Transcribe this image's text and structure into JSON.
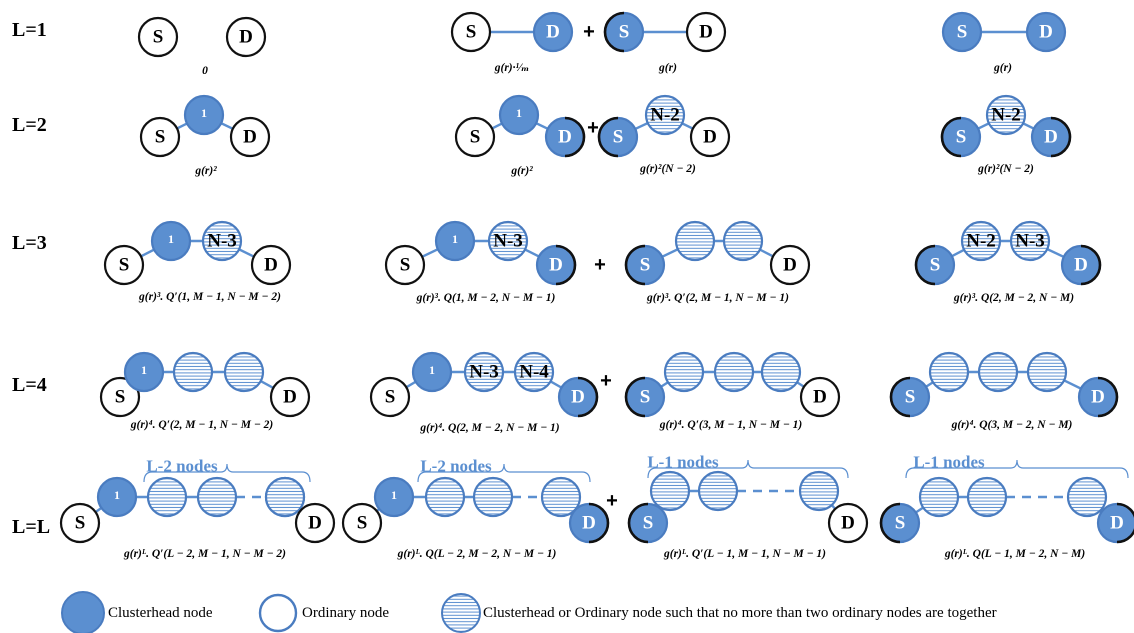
{
  "rows": [
    {
      "label": "L=1",
      "formulas": [
        "0",
        "g(r)·¹⁄ₘ",
        "g(r)",
        "g(r)"
      ]
    },
    {
      "label": "L=2",
      "formulas": [
        "g(r)²",
        "g(r)²",
        "g(r)²(N − 2)",
        "g(r)²(N − 2)"
      ]
    },
    {
      "label": "L=3",
      "formulas": [
        "g(r)³. Q′(1, M − 1, N − M − 2)",
        "g(r)³. Q(1, M − 2, N − M − 1)",
        "g(r)³. Q′(2, M − 1, N − M − 1)",
        "g(r)³. Q(2, M − 2, N − M)"
      ]
    },
    {
      "label": "L=4",
      "formulas": [
        "g(r)⁴. Q′(2, M − 1, N − M − 2)",
        "g(r)⁴. Q(2, M − 2, N − M − 1)",
        "g(r)⁴. Q′(3, M − 1, N − M − 1)",
        "g(r)⁴. Q(3, M − 2, N − M)"
      ]
    },
    {
      "label": "L=L",
      "formulas": [
        "g(r)ᴸ. Q′(L − 2, M − 1, N − M − 2)",
        "g(r)ᴸ. Q(L − 2, M − 2, N − M − 1)",
        "g(r)ᴸ. Q′(L − 1, M − 1, N − M − 1)",
        "g(r)ᴸ. Q(L − 1, M − 2, N − M)"
      ]
    }
  ],
  "node_labels": {
    "source": "S",
    "destination": "D",
    "first": "1",
    "n2": "N-2",
    "n3": "N-3",
    "n4": "N-4"
  },
  "plus_sign": "+",
  "brace_labels": {
    "l2": "L-2 nodes",
    "l1": "L-1 nodes"
  },
  "legend": {
    "clusterhead": "Clusterhead node",
    "ordinary": "Ordinary node",
    "either": "Clusterhead  or Ordinary node such that no more than two ordinary nodes are together"
  },
  "colors": {
    "fill": "#5b8fd0",
    "stroke": "#4a7cc0",
    "line": "#5b8fd0",
    "black": "#111111"
  }
}
